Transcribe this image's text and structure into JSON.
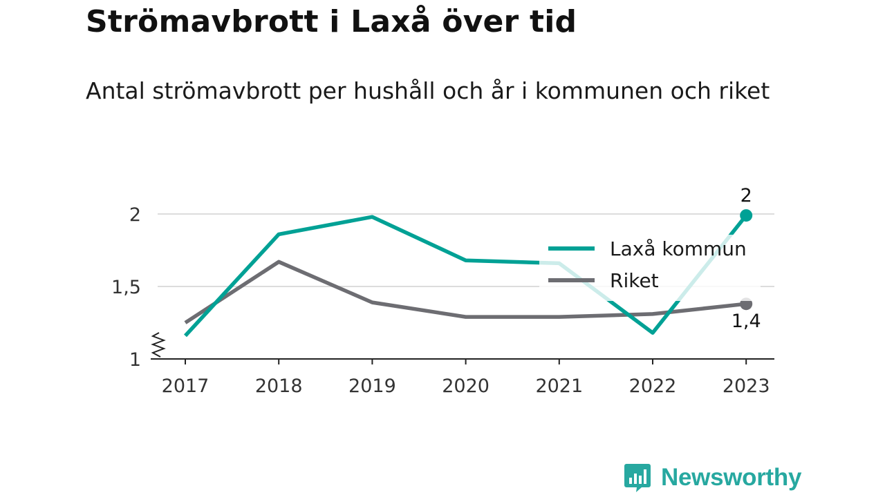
{
  "title": "Strömavbrott i Laxå över tid",
  "subtitle": "Antal strömavbrott per hushåll och år i kommunen och riket",
  "brand": {
    "name": "Newsworthy",
    "icon": "newsworthy-logo-icon",
    "color": "#27a8a0"
  },
  "chart_data": {
    "type": "line",
    "x": [
      "2017",
      "2018",
      "2019",
      "2020",
      "2021",
      "2022",
      "2023"
    ],
    "ylim": [
      1,
      2
    ],
    "y_ticks": [
      1,
      1.5,
      2
    ],
    "y_tick_labels": [
      "1",
      "1,5",
      "2"
    ],
    "y_axis_break": true,
    "grid": true,
    "legend_position": "right",
    "series": [
      {
        "name": "Laxå kommun",
        "color": "#00a195",
        "values": [
          1.16,
          1.86,
          1.98,
          1.68,
          1.66,
          1.18,
          1.99
        ],
        "end_label": "2"
      },
      {
        "name": "Riket",
        "color": "#6d6d72",
        "values": [
          1.25,
          1.67,
          1.39,
          1.29,
          1.29,
          1.31,
          1.38
        ],
        "end_label": "1,4"
      }
    ]
  }
}
